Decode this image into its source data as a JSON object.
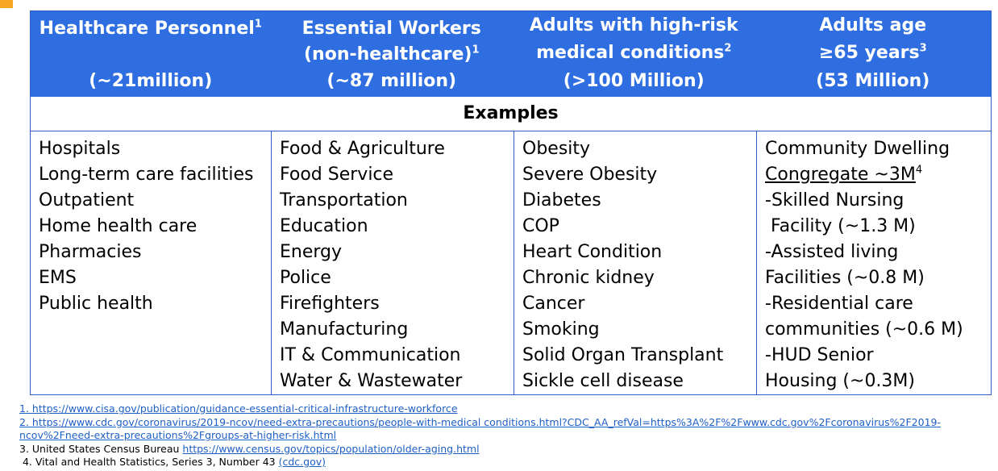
{
  "header": [
    {
      "line1": "Healthcare Personnel",
      "sup1": "1",
      "line2": "",
      "sup2": "",
      "line3": "(~21million)"
    },
    {
      "line1": "Essential Workers",
      "sup1": "",
      "line2": "(non-healthcare)",
      "sup2": "1",
      "line3": "(~87 million)"
    },
    {
      "line1": "Adults with high-risk",
      "sup1": "",
      "line2": "medical conditions",
      "sup2": "2",
      "line3": "(>100 Million)"
    },
    {
      "line1": "Adults age",
      "sup1": "",
      "line2": "≥65 years",
      "sup2": "3",
      "line3": "(53 Million)"
    }
  ],
  "examples_label": "Examples",
  "columns": [
    [
      "Hospitals",
      "Long-term care facilities",
      "Outpatient",
      "Home health care",
      "Pharmacies",
      "EMS",
      "Public health"
    ],
    [
      "Food & Agriculture",
      "Food Service",
      "Transportation",
      "Education",
      "Energy",
      "Police",
      "Firefighters",
      "Manufacturing",
      "IT & Communication",
      "Water & Wastewater"
    ],
    [
      "Obesity",
      "Severe Obesity",
      "Diabetes",
      "COP",
      "Heart Condition",
      "Chronic kidney",
      "Cancer",
      "Smoking",
      "Solid Organ Transplant",
      "Sickle cell disease"
    ],
    [
      "Community Dwelling",
      "Congregate ~3M",
      "-Skilled Nursing",
      " Facility (~1.3 M)",
      "-Assisted living",
      "Facilities (~0.8 M)",
      "-Residential care",
      "communities (~0.6 M)",
      "-HUD Senior",
      "Housing (~0.3M)"
    ]
  ],
  "col4_sup": "4",
  "footnotes": {
    "fn1": "1. https://www.cisa.gov/publication/guidance-essential-critical-infrastructure-workforce",
    "fn2a": "2. https://www.cdc.gov/coronavirus/2019-ncov/need-extra-precautions/people-with-medical conditions.html?CDC_AA_refVal=https%3A%2F%2Fwww.cdc.gov%2Fcoronavirus%2F2019-",
    "fn2b": "ncov%2Fneed-extra-precautions%2Fgroups-at-higher-risk.html",
    "fn3_text": "3. United States Census Bureau ",
    "fn3_link": "https://www.census.gov/topics/population/older-aging.html",
    "fn4_text": " 4. Vital and Health Statistics, Series 3, Number 43 ",
    "fn4_link": "(cdc.gov)"
  },
  "colors": {
    "header_bg": "#2f6ee0",
    "border": "#2e5cc9",
    "link": "#1f5fc4",
    "accent": "#f5a623"
  }
}
